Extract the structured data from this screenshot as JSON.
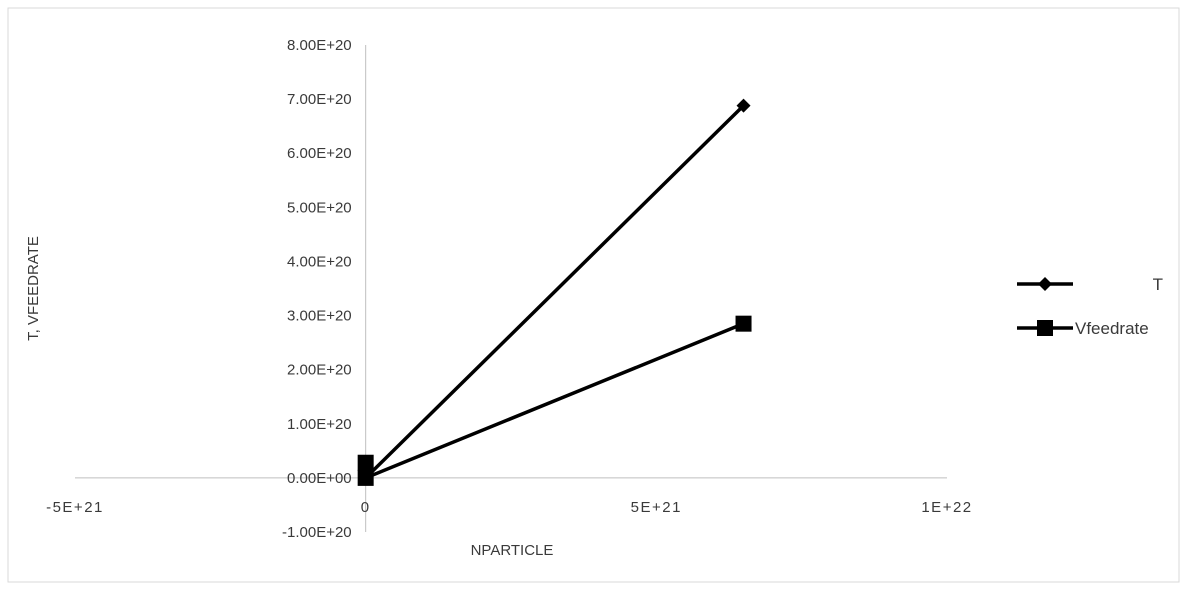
{
  "chart_data": {
    "type": "scatter",
    "title": "",
    "xlabel": "NPARTICLE",
    "ylabel": "T, VFEEDRATE",
    "xlim": [
      -5e+21,
      1e+22
    ],
    "ylim": [
      -1e+20,
      8e+20
    ],
    "x_ticks": [
      {
        "value": -5e+21,
        "label": "-5E+21"
      },
      {
        "value": 0,
        "label": "0"
      },
      {
        "value": 5e+21,
        "label": "5E+21"
      },
      {
        "value": 1e+22,
        "label": "1E+22"
      }
    ],
    "y_ticks": [
      {
        "value": -1e+20,
        "label": "-1.00E+20"
      },
      {
        "value": 0,
        "label": "0.00E+00"
      },
      {
        "value": 1e+20,
        "label": "1.00E+20"
      },
      {
        "value": 2e+20,
        "label": "2.00E+20"
      },
      {
        "value": 3e+20,
        "label": "3.00E+20"
      },
      {
        "value": 4e+20,
        "label": "4.00E+20"
      },
      {
        "value": 5e+20,
        "label": "5.00E+20"
      },
      {
        "value": 6e+20,
        "label": "6.00E+20"
      },
      {
        "value": 7e+20,
        "label": "7.00E+20"
      },
      {
        "value": 8e+20,
        "label": "8.00E+20"
      }
    ],
    "grid": false,
    "legend": "right",
    "series": [
      {
        "name": "T",
        "marker": "diamond",
        "color": "#000000",
        "points": [
          [
            0,
            0
          ],
          [
            6.5e+21,
            6.88e+20
          ]
        ]
      },
      {
        "name": "Vfeedrate",
        "marker": "square",
        "color": "#000000",
        "points": [
          [
            0,
            2.8e+19
          ],
          [
            0,
            0
          ],
          [
            6.5e+21,
            2.85e+20
          ]
        ]
      }
    ]
  }
}
